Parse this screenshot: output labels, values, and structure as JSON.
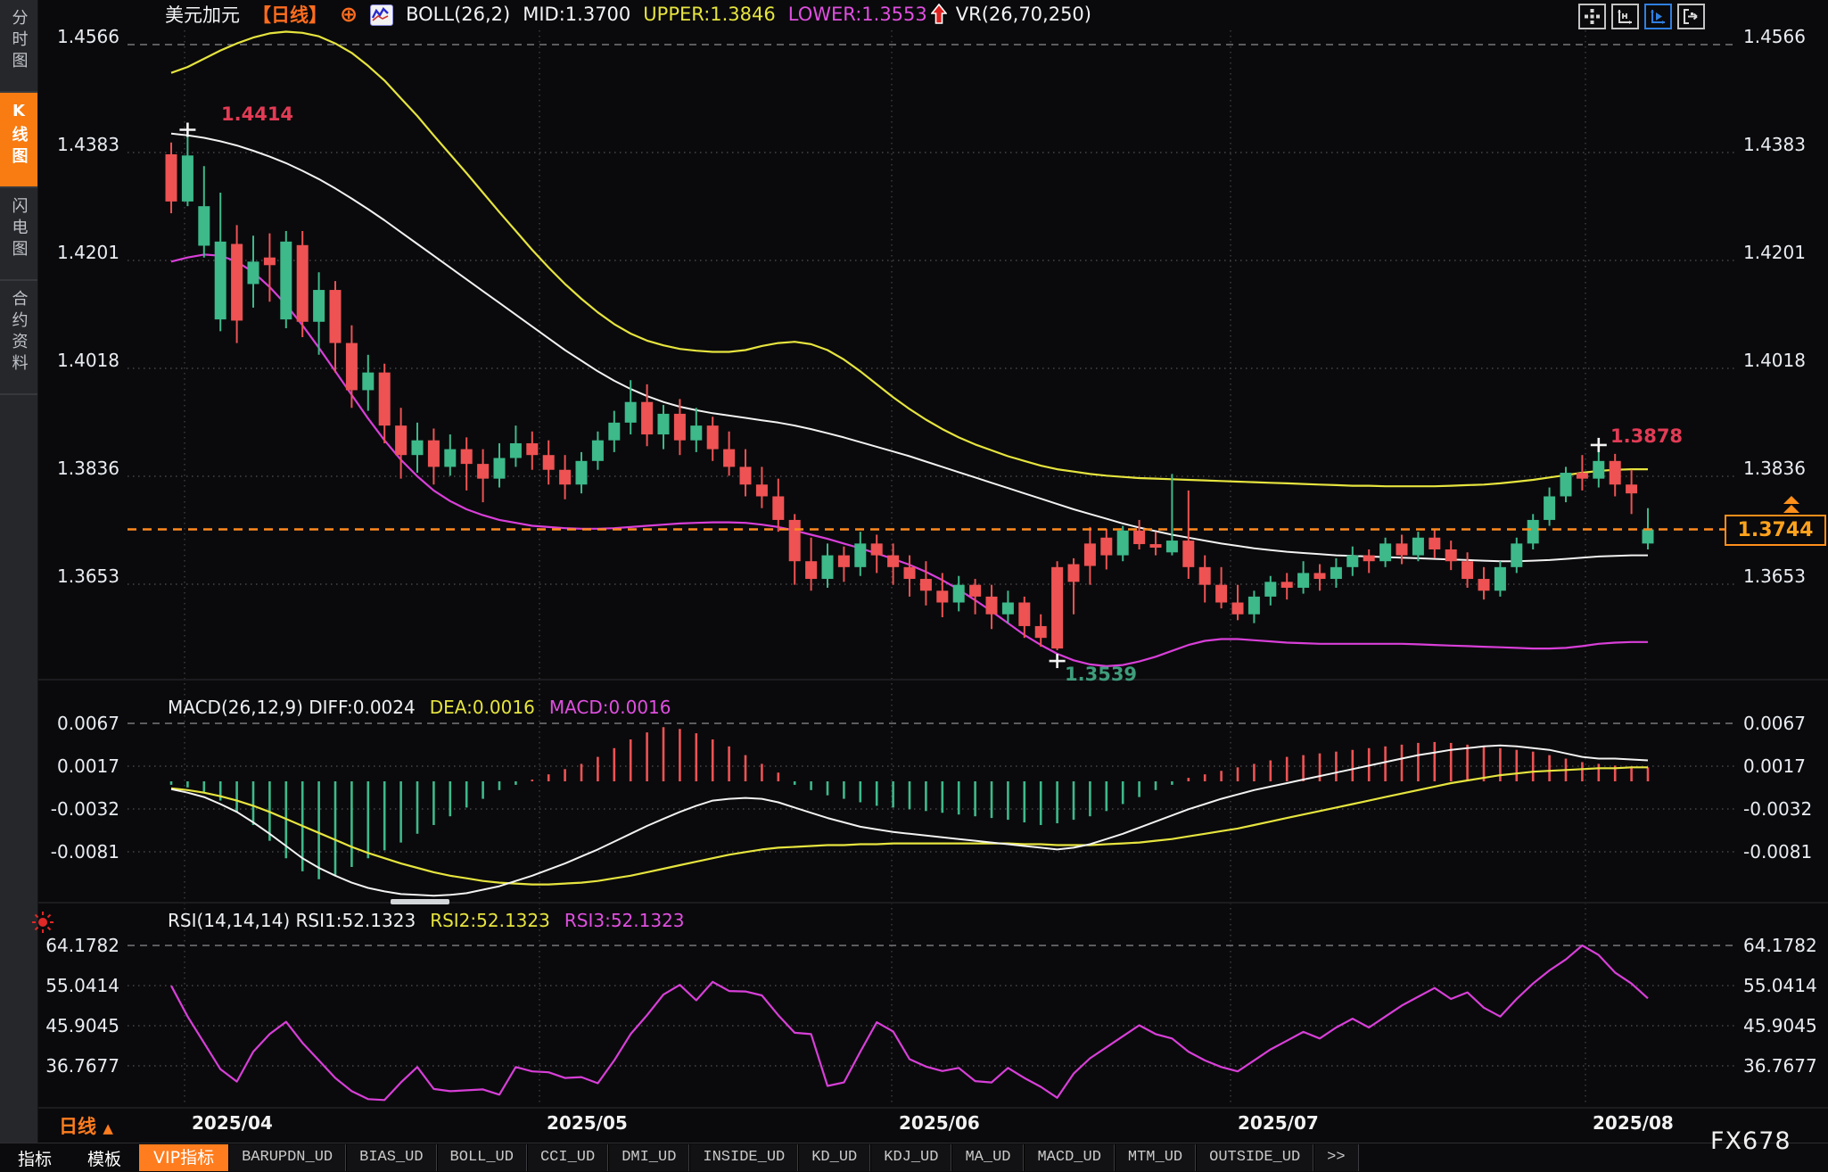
{
  "header": {
    "symbol": "美元加元",
    "period_tag": "【日线】",
    "crosshair_glyph": "⊕",
    "boll_title": "BOLL(26,2)",
    "mid": "MID:1.3700",
    "upper": "UPPER:1.3846",
    "lower": "LOWER:1.3553",
    "vr": "VR(26,70,250)"
  },
  "toolbar": {
    "icons": [
      "move-grid-icon",
      "axis-range-icon",
      "axis-play-icon",
      "screen-switch-icon"
    ],
    "active_icon": "axis-play-icon"
  },
  "sidebar": {
    "items": [
      {
        "label": "分时图",
        "active": false
      },
      {
        "label": "K线图",
        "active": true
      },
      {
        "label": "闪电图",
        "active": false
      },
      {
        "label": "合约资料",
        "active": false
      }
    ]
  },
  "macd_header": {
    "title": "MACD(26,12,9) DIFF:0.0024",
    "dea": "DEA:0.0016",
    "macd": "MACD:0.0016"
  },
  "rsi_header": {
    "title": "RSI(14,14,14) RSI1:52.1323",
    "rsi2": "RSI2:52.1323",
    "rsi3": "RSI3:52.1323"
  },
  "markers": {
    "high_april": "1.4414",
    "high_july": "1.3878",
    "low_june": "1.3539"
  },
  "current_price": "1.3744",
  "bottom": {
    "period": "日线",
    "period_arrow": "▲",
    "dates": [
      "2025/04",
      "2025/05",
      "2025/06",
      "2025/07",
      "2025/08"
    ],
    "tabs": [
      {
        "label": "指标",
        "style": "plain"
      },
      {
        "label": "模板",
        "style": "plain"
      },
      {
        "label": "VIP指标",
        "style": "vip"
      },
      {
        "label": "BARUPDN_UD",
        "style": "box"
      },
      {
        "label": "BIAS_UD",
        "style": "box"
      },
      {
        "label": "BOLL_UD",
        "style": "box"
      },
      {
        "label": "CCI_UD",
        "style": "box"
      },
      {
        "label": "DMI_UD",
        "style": "box"
      },
      {
        "label": "INSIDE_UD",
        "style": "box"
      },
      {
        "label": "KD_UD",
        "style": "box"
      },
      {
        "label": "KDJ_UD",
        "style": "box"
      },
      {
        "label": "MA_UD",
        "style": "box"
      },
      {
        "label": "MACD_UD",
        "style": "box"
      },
      {
        "label": "MTM_UD",
        "style": "box"
      },
      {
        "label": "OUTSIDE_UD",
        "style": "box"
      },
      {
        "label": ">>",
        "style": "box"
      }
    ],
    "watermark": "FX678"
  },
  "colors": {
    "up": "#3db98a",
    "down": "#ee5253",
    "boll_upper": "#e6e43e",
    "boll_mid": "#f2f2f2",
    "boll_lower": "#d93fd9",
    "rsi_line": "#d83fd8",
    "accent_orange": "#ff7d1e",
    "price_line": "#ff8a1e",
    "grid": "#46464a",
    "label": "#e9edf2"
  },
  "chart_data": {
    "type": "candlestick",
    "title": "美元加元 (USD/CAD) 日线",
    "price_axis_ticks": [
      "1.4566",
      "1.4383",
      "1.4201",
      "1.4018",
      "1.3836",
      "1.3653"
    ],
    "macd_axis_ticks": [
      "0.0067",
      "0.0017",
      "-0.0032",
      "-0.0081"
    ],
    "rsi_axis_ticks": [
      "64.1782",
      "55.0414",
      "45.9045",
      "36.7677"
    ],
    "x_axis_ticks": [
      "2025/04",
      "2025/05",
      "2025/06",
      "2025/07",
      "2025/08"
    ],
    "high_marker": {
      "index": 1,
      "price": 1.4414
    },
    "high_marker2": {
      "index": 87,
      "price": 1.3878
    },
    "low_marker": {
      "index": 54,
      "price": 1.3539
    },
    "last_price": 1.3744,
    "candles": [
      [
        1.438,
        1.44,
        1.428,
        1.43
      ],
      [
        1.43,
        1.4414,
        1.4292,
        1.4378
      ],
      [
        1.4225,
        1.436,
        1.4205,
        1.4292
      ],
      [
        1.41,
        1.4315,
        1.408,
        1.4232
      ],
      [
        1.4228,
        1.426,
        1.406,
        1.4098
      ],
      [
        1.416,
        1.4242,
        1.412,
        1.4198
      ],
      [
        1.4205,
        1.4246,
        1.413,
        1.4192
      ],
      [
        1.41,
        1.425,
        1.4085,
        1.4232
      ],
      [
        1.4226,
        1.425,
        1.407,
        1.4096
      ],
      [
        1.4096,
        1.418,
        1.404,
        1.415
      ],
      [
        1.415,
        1.4165,
        1.401,
        1.406
      ],
      [
        1.406,
        1.409,
        1.395,
        1.398
      ],
      [
        1.398,
        1.404,
        1.3945,
        1.401
      ],
      [
        1.401,
        1.4025,
        1.389,
        1.392
      ],
      [
        1.392,
        1.395,
        1.383,
        1.387
      ],
      [
        1.387,
        1.3925,
        1.384,
        1.3895
      ],
      [
        1.3895,
        1.3915,
        1.382,
        1.385
      ],
      [
        1.385,
        1.3905,
        1.3835,
        1.388
      ],
      [
        1.388,
        1.39,
        1.381,
        1.3855
      ],
      [
        1.3855,
        1.388,
        1.379,
        1.383
      ],
      [
        1.383,
        1.389,
        1.3815,
        1.3865
      ],
      [
        1.3865,
        1.392,
        1.385,
        1.389
      ],
      [
        1.389,
        1.391,
        1.3845,
        1.387
      ],
      [
        1.387,
        1.3895,
        1.382,
        1.3845
      ],
      [
        1.3845,
        1.387,
        1.3795,
        1.382
      ],
      [
        1.382,
        1.3875,
        1.3805,
        1.386
      ],
      [
        1.386,
        1.391,
        1.3845,
        1.3895
      ],
      [
        1.3895,
        1.3945,
        1.3875,
        1.3925
      ],
      [
        1.3925,
        1.3997,
        1.3905,
        1.396
      ],
      [
        1.396,
        1.399,
        1.3885,
        1.3905
      ],
      [
        1.3905,
        1.3955,
        1.388,
        1.394
      ],
      [
        1.394,
        1.3965,
        1.387,
        1.3895
      ],
      [
        1.3895,
        1.395,
        1.3875,
        1.392
      ],
      [
        1.392,
        1.3935,
        1.386,
        1.388
      ],
      [
        1.388,
        1.391,
        1.3835,
        1.385
      ],
      [
        1.385,
        1.388,
        1.38,
        1.382
      ],
      [
        1.382,
        1.385,
        1.378,
        1.38
      ],
      [
        1.38,
        1.383,
        1.374,
        1.376
      ],
      [
        1.376,
        1.377,
        1.365,
        1.369
      ],
      [
        1.369,
        1.373,
        1.364,
        1.366
      ],
      [
        1.366,
        1.372,
        1.3645,
        1.37
      ],
      [
        1.37,
        1.3715,
        1.3655,
        1.368
      ],
      [
        1.368,
        1.374,
        1.3665,
        1.372
      ],
      [
        1.372,
        1.3735,
        1.367,
        1.37
      ],
      [
        1.37,
        1.372,
        1.365,
        1.368
      ],
      [
        1.368,
        1.37,
        1.363,
        1.366
      ],
      [
        1.366,
        1.369,
        1.3615,
        1.364
      ],
      [
        1.364,
        1.367,
        1.3595,
        1.362
      ],
      [
        1.362,
        1.3665,
        1.3605,
        1.365
      ],
      [
        1.365,
        1.366,
        1.36,
        1.363
      ],
      [
        1.363,
        1.365,
        1.3575,
        1.36
      ],
      [
        1.36,
        1.364,
        1.3585,
        1.362
      ],
      [
        1.362,
        1.363,
        1.356,
        1.358
      ],
      [
        1.358,
        1.36,
        1.3545,
        1.356
      ],
      [
        1.368,
        1.369,
        1.3539,
        1.3542
      ],
      [
        1.3685,
        1.3695,
        1.36,
        1.3655
      ],
      [
        1.372,
        1.3748,
        1.365,
        1.3682
      ],
      [
        1.373,
        1.3745,
        1.3676,
        1.37
      ],
      [
        1.37,
        1.375,
        1.369,
        1.3742
      ],
      [
        1.3742,
        1.376,
        1.371,
        1.3719
      ],
      [
        1.3719,
        1.374,
        1.37,
        1.3713
      ],
      [
        1.3705,
        1.3838,
        1.37,
        1.3725
      ],
      [
        1.3725,
        1.381,
        1.366,
        1.368
      ],
      [
        1.368,
        1.37,
        1.362,
        1.365
      ],
      [
        1.365,
        1.368,
        1.361,
        1.362
      ],
      [
        1.362,
        1.365,
        1.359,
        1.36
      ],
      [
        1.36,
        1.364,
        1.3585,
        1.363
      ],
      [
        1.363,
        1.3665,
        1.3615,
        1.3655
      ],
      [
        1.3655,
        1.367,
        1.3625,
        1.3645
      ],
      [
        1.3645,
        1.369,
        1.3635,
        1.367
      ],
      [
        1.367,
        1.3685,
        1.364,
        1.366
      ],
      [
        1.366,
        1.3695,
        1.3645,
        1.368
      ],
      [
        1.368,
        1.3715,
        1.3665,
        1.37
      ],
      [
        1.37,
        1.371,
        1.367,
        1.369
      ],
      [
        1.369,
        1.373,
        1.368,
        1.372
      ],
      [
        1.372,
        1.3735,
        1.3685,
        1.37
      ],
      [
        1.37,
        1.374,
        1.369,
        1.373
      ],
      [
        1.373,
        1.3745,
        1.3695,
        1.371
      ],
      [
        1.371,
        1.3725,
        1.3675,
        1.369
      ],
      [
        1.369,
        1.3705,
        1.3645,
        1.366
      ],
      [
        1.366,
        1.368,
        1.3625,
        1.364
      ],
      [
        1.364,
        1.369,
        1.363,
        1.368
      ],
      [
        1.368,
        1.373,
        1.367,
        1.372
      ],
      [
        1.372,
        1.377,
        1.371,
        1.376
      ],
      [
        1.376,
        1.3815,
        1.375,
        1.38
      ],
      [
        1.38,
        1.385,
        1.379,
        1.384
      ],
      [
        1.384,
        1.387,
        1.381,
        1.383
      ],
      [
        1.383,
        1.3878,
        1.3815,
        1.386
      ],
      [
        1.386,
        1.3872,
        1.38,
        1.382
      ],
      [
        1.382,
        1.3845,
        1.377,
        1.3805
      ],
      [
        1.372,
        1.378,
        1.371,
        1.3744
      ]
    ],
    "boll_upper": [
      1.4518,
      1.4528,
      1.4542,
      1.4556,
      1.4568,
      1.4578,
      1.4585,
      1.4588,
      1.4586,
      1.458,
      1.4568,
      1.4552,
      1.453,
      1.4505,
      1.4475,
      1.4445,
      1.4412,
      1.438,
      1.4348,
      1.4315,
      1.4282,
      1.425,
      1.4218,
      1.4188,
      1.416,
      1.4135,
      1.4112,
      1.4092,
      1.4076,
      1.4064,
      1.4056,
      1.405,
      1.4047,
      1.4045,
      1.4045,
      1.4048,
      1.4055,
      1.406,
      1.4062,
      1.4058,
      1.4048,
      1.4032,
      1.4012,
      1.399,
      1.3968,
      1.3948,
      1.393,
      1.3914,
      1.39,
      1.3888,
      1.3878,
      1.3868,
      1.386,
      1.3852,
      1.3846,
      1.3842,
      1.3838,
      1.3835,
      1.3833,
      1.3831,
      1.383,
      1.3829,
      1.3828,
      1.3827,
      1.3826,
      1.3825,
      1.3824,
      1.3823,
      1.3822,
      1.3821,
      1.382,
      1.3819,
      1.3818,
      1.3818,
      1.3817,
      1.3817,
      1.3817,
      1.3817,
      1.3818,
      1.3819,
      1.382,
      1.3822,
      1.3825,
      1.3828,
      1.3832,
      1.3836,
      1.384,
      1.3843,
      1.3845,
      1.3846,
      1.3846
    ],
    "boll_mid": [
      1.4415,
      1.4412,
      1.4408,
      1.4402,
      1.4395,
      1.4386,
      1.4376,
      1.4365,
      1.4352,
      1.4338,
      1.4322,
      1.4305,
      1.4287,
      1.4268,
      1.4248,
      1.4228,
      1.4208,
      1.4188,
      1.4168,
      1.4148,
      1.4128,
      1.4108,
      1.4088,
      1.4068,
      1.4048,
      1.403,
      1.4012,
      1.3996,
      1.3982,
      1.397,
      1.396,
      1.3952,
      1.3946,
      1.3941,
      1.3937,
      1.3933,
      1.3929,
      1.3925,
      1.392,
      1.3914,
      1.3907,
      1.39,
      1.3892,
      1.3884,
      1.3876,
      1.3868,
      1.3859,
      1.385,
      1.3841,
      1.3832,
      1.3823,
      1.3814,
      1.3805,
      1.3796,
      1.3787,
      1.3778,
      1.377,
      1.3762,
      1.3754,
      1.3747,
      1.3741,
      1.3735,
      1.373,
      1.3725,
      1.372,
      1.3716,
      1.3712,
      1.3709,
      1.3706,
      1.3704,
      1.3702,
      1.37,
      1.3699,
      1.3698,
      1.3697,
      1.3696,
      1.3695,
      1.3694,
      1.3693,
      1.3692,
      1.3691,
      1.369,
      1.369,
      1.3691,
      1.3692,
      1.3694,
      1.3696,
      1.3698,
      1.3699,
      1.37,
      1.37
    ],
    "boll_lower": [
      1.4198,
      1.4205,
      1.421,
      1.4208,
      1.4198,
      1.418,
      1.4155,
      1.4125,
      1.409,
      1.4052,
      1.4012,
      1.3972,
      1.3932,
      1.3895,
      1.3862,
      1.3834,
      1.381,
      1.3792,
      1.3778,
      1.3768,
      1.376,
      1.3755,
      1.375,
      1.3748,
      1.3746,
      1.3745,
      1.3745,
      1.3746,
      1.3748,
      1.375,
      1.3752,
      1.3754,
      1.3755,
      1.3756,
      1.3756,
      1.3755,
      1.3752,
      1.3748,
      1.3742,
      1.3735,
      1.3728,
      1.372,
      1.3712,
      1.3703,
      1.3694,
      1.3684,
      1.3672,
      1.3658,
      1.3642,
      1.3624,
      1.3605,
      1.3585,
      1.3565,
      1.3548,
      1.3533,
      1.3522,
      1.3515,
      1.3512,
      1.3514,
      1.352,
      1.3528,
      1.3538,
      1.3548,
      1.3555,
      1.3558,
      1.3558,
      1.3556,
      1.3554,
      1.3552,
      1.3551,
      1.355,
      1.355,
      1.355,
      1.355,
      1.355,
      1.355,
      1.3549,
      1.3548,
      1.3547,
      1.3546,
      1.3545,
      1.3544,
      1.3543,
      1.3542,
      1.3542,
      1.3543,
      1.3546,
      1.355,
      1.3552,
      1.3553,
      1.3553
    ],
    "macd_hist": [
      -0.0004,
      -0.0007,
      -0.0012,
      -0.0022,
      -0.0035,
      -0.005,
      -0.0068,
      -0.0088,
      -0.0103,
      -0.0112,
      -0.0108,
      -0.0098,
      -0.0088,
      -0.0079,
      -0.007,
      -0.006,
      -0.005,
      -0.004,
      -0.003,
      -0.002,
      -0.001,
      -0.0004,
      0.0002,
      0.0008,
      0.0014,
      0.002,
      0.0028,
      0.0038,
      0.0048,
      0.0056,
      0.0062,
      0.006,
      0.0055,
      0.0048,
      0.004,
      0.003,
      0.002,
      0.001,
      -0.0004,
      -0.001,
      -0.0016,
      -0.002,
      -0.0024,
      -0.0028,
      -0.003,
      -0.0032,
      -0.0034,
      -0.0036,
      -0.0038,
      -0.004,
      -0.0042,
      -0.0044,
      -0.0047,
      -0.005,
      -0.0048,
      -0.0044,
      -0.004,
      -0.0034,
      -0.0026,
      -0.0018,
      -0.001,
      -0.0004,
      0.0004,
      0.0008,
      0.0012,
      0.0016,
      0.002,
      0.0024,
      0.0028,
      0.003,
      0.0032,
      0.0034,
      0.0036,
      0.0038,
      0.004,
      0.0042,
      0.0044,
      0.0045,
      0.0044,
      0.0042,
      0.004,
      0.0038,
      0.0036,
      0.0034,
      0.003,
      0.0026,
      0.0022,
      0.002,
      0.0018,
      0.0017,
      0.0016
    ],
    "macd_diff": [
      -0.0009,
      -0.0013,
      -0.0018,
      -0.0026,
      -0.0035,
      -0.0047,
      -0.006,
      -0.0074,
      -0.0088,
      -0.0099,
      -0.0108,
      -0.0116,
      -0.0122,
      -0.0126,
      -0.0129,
      -0.013,
      -0.0131,
      -0.013,
      -0.0128,
      -0.0124,
      -0.012,
      -0.0114,
      -0.0108,
      -0.0101,
      -0.0094,
      -0.0086,
      -0.0078,
      -0.0069,
      -0.006,
      -0.0051,
      -0.0043,
      -0.0035,
      -0.0028,
      -0.0022,
      -0.002,
      -0.0019,
      -0.002,
      -0.0024,
      -0.003,
      -0.0036,
      -0.0042,
      -0.0047,
      -0.0052,
      -0.0055,
      -0.0058,
      -0.006,
      -0.0062,
      -0.0064,
      -0.0066,
      -0.0068,
      -0.007,
      -0.0072,
      -0.0074,
      -0.0076,
      -0.0078,
      -0.0076,
      -0.0072,
      -0.0066,
      -0.006,
      -0.0053,
      -0.0046,
      -0.0039,
      -0.0032,
      -0.0026,
      -0.002,
      -0.0015,
      -0.001,
      -0.0006,
      -0.0002,
      0.0002,
      0.0006,
      0.001,
      0.0014,
      0.0018,
      0.0022,
      0.0026,
      0.003,
      0.0033,
      0.0036,
      0.0038,
      0.004,
      0.0041,
      0.004,
      0.0038,
      0.0036,
      0.0032,
      0.0028,
      0.0026,
      0.0026,
      0.0025,
      0.0024
    ],
    "macd_dea": [
      -0.0008,
      -0.001,
      -0.0013,
      -0.0017,
      -0.0022,
      -0.0028,
      -0.0035,
      -0.0043,
      -0.0051,
      -0.0059,
      -0.0067,
      -0.0075,
      -0.0082,
      -0.0088,
      -0.0094,
      -0.0099,
      -0.0104,
      -0.0108,
      -0.0111,
      -0.0114,
      -0.0116,
      -0.0117,
      -0.0118,
      -0.0118,
      -0.0117,
      -0.0116,
      -0.0114,
      -0.0111,
      -0.0108,
      -0.0104,
      -0.01,
      -0.0096,
      -0.0092,
      -0.0088,
      -0.0084,
      -0.0081,
      -0.0078,
      -0.0076,
      -0.0075,
      -0.0074,
      -0.0073,
      -0.0073,
      -0.0072,
      -0.0072,
      -0.0071,
      -0.0071,
      -0.0071,
      -0.0071,
      -0.0071,
      -0.0071,
      -0.0071,
      -0.0071,
      -0.0072,
      -0.0072,
      -0.0073,
      -0.0073,
      -0.0073,
      -0.0072,
      -0.0071,
      -0.007,
      -0.0068,
      -0.0066,
      -0.0063,
      -0.006,
      -0.0057,
      -0.0054,
      -0.005,
      -0.0046,
      -0.0042,
      -0.0038,
      -0.0034,
      -0.003,
      -0.0026,
      -0.0022,
      -0.0018,
      -0.0014,
      -0.001,
      -0.0006,
      -0.0002,
      0.0001,
      0.0004,
      0.0007,
      0.0009,
      0.0011,
      0.0012,
      0.0013,
      0.0014,
      0.0015,
      0.0015,
      0.0016,
      0.0016
    ],
    "rsi": [
      55,
      48,
      42,
      36,
      33.2,
      40,
      44,
      46.8,
      42,
      38,
      34,
      31,
      29.2,
      29,
      33,
      36.5,
      31.5,
      31,
      31.2,
      31.4,
      30.2,
      36.5,
      35.5,
      35.3,
      34,
      34.2,
      32.8,
      38,
      44,
      48.3,
      53,
      55.2,
      51.7,
      55.9,
      53.8,
      53.7,
      52.8,
      48.3,
      44.3,
      44,
      32.2,
      33,
      40,
      46.7,
      44.6,
      38.3,
      36.6,
      35.6,
      36.3,
      33.3,
      33,
      36.3,
      34,
      32,
      29.5,
      35,
      38.5,
      41,
      43.5,
      46,
      44,
      43,
      40,
      38,
      36.5,
      35.5,
      38,
      40.5,
      42.5,
      44.5,
      43,
      45.5,
      47.5,
      45.5,
      48,
      50.5,
      52.5,
      54.5,
      52,
      53.5,
      50,
      48,
      52,
      55.5,
      58.5,
      61,
      64.18,
      62,
      58,
      55.5,
      52.13
    ]
  }
}
